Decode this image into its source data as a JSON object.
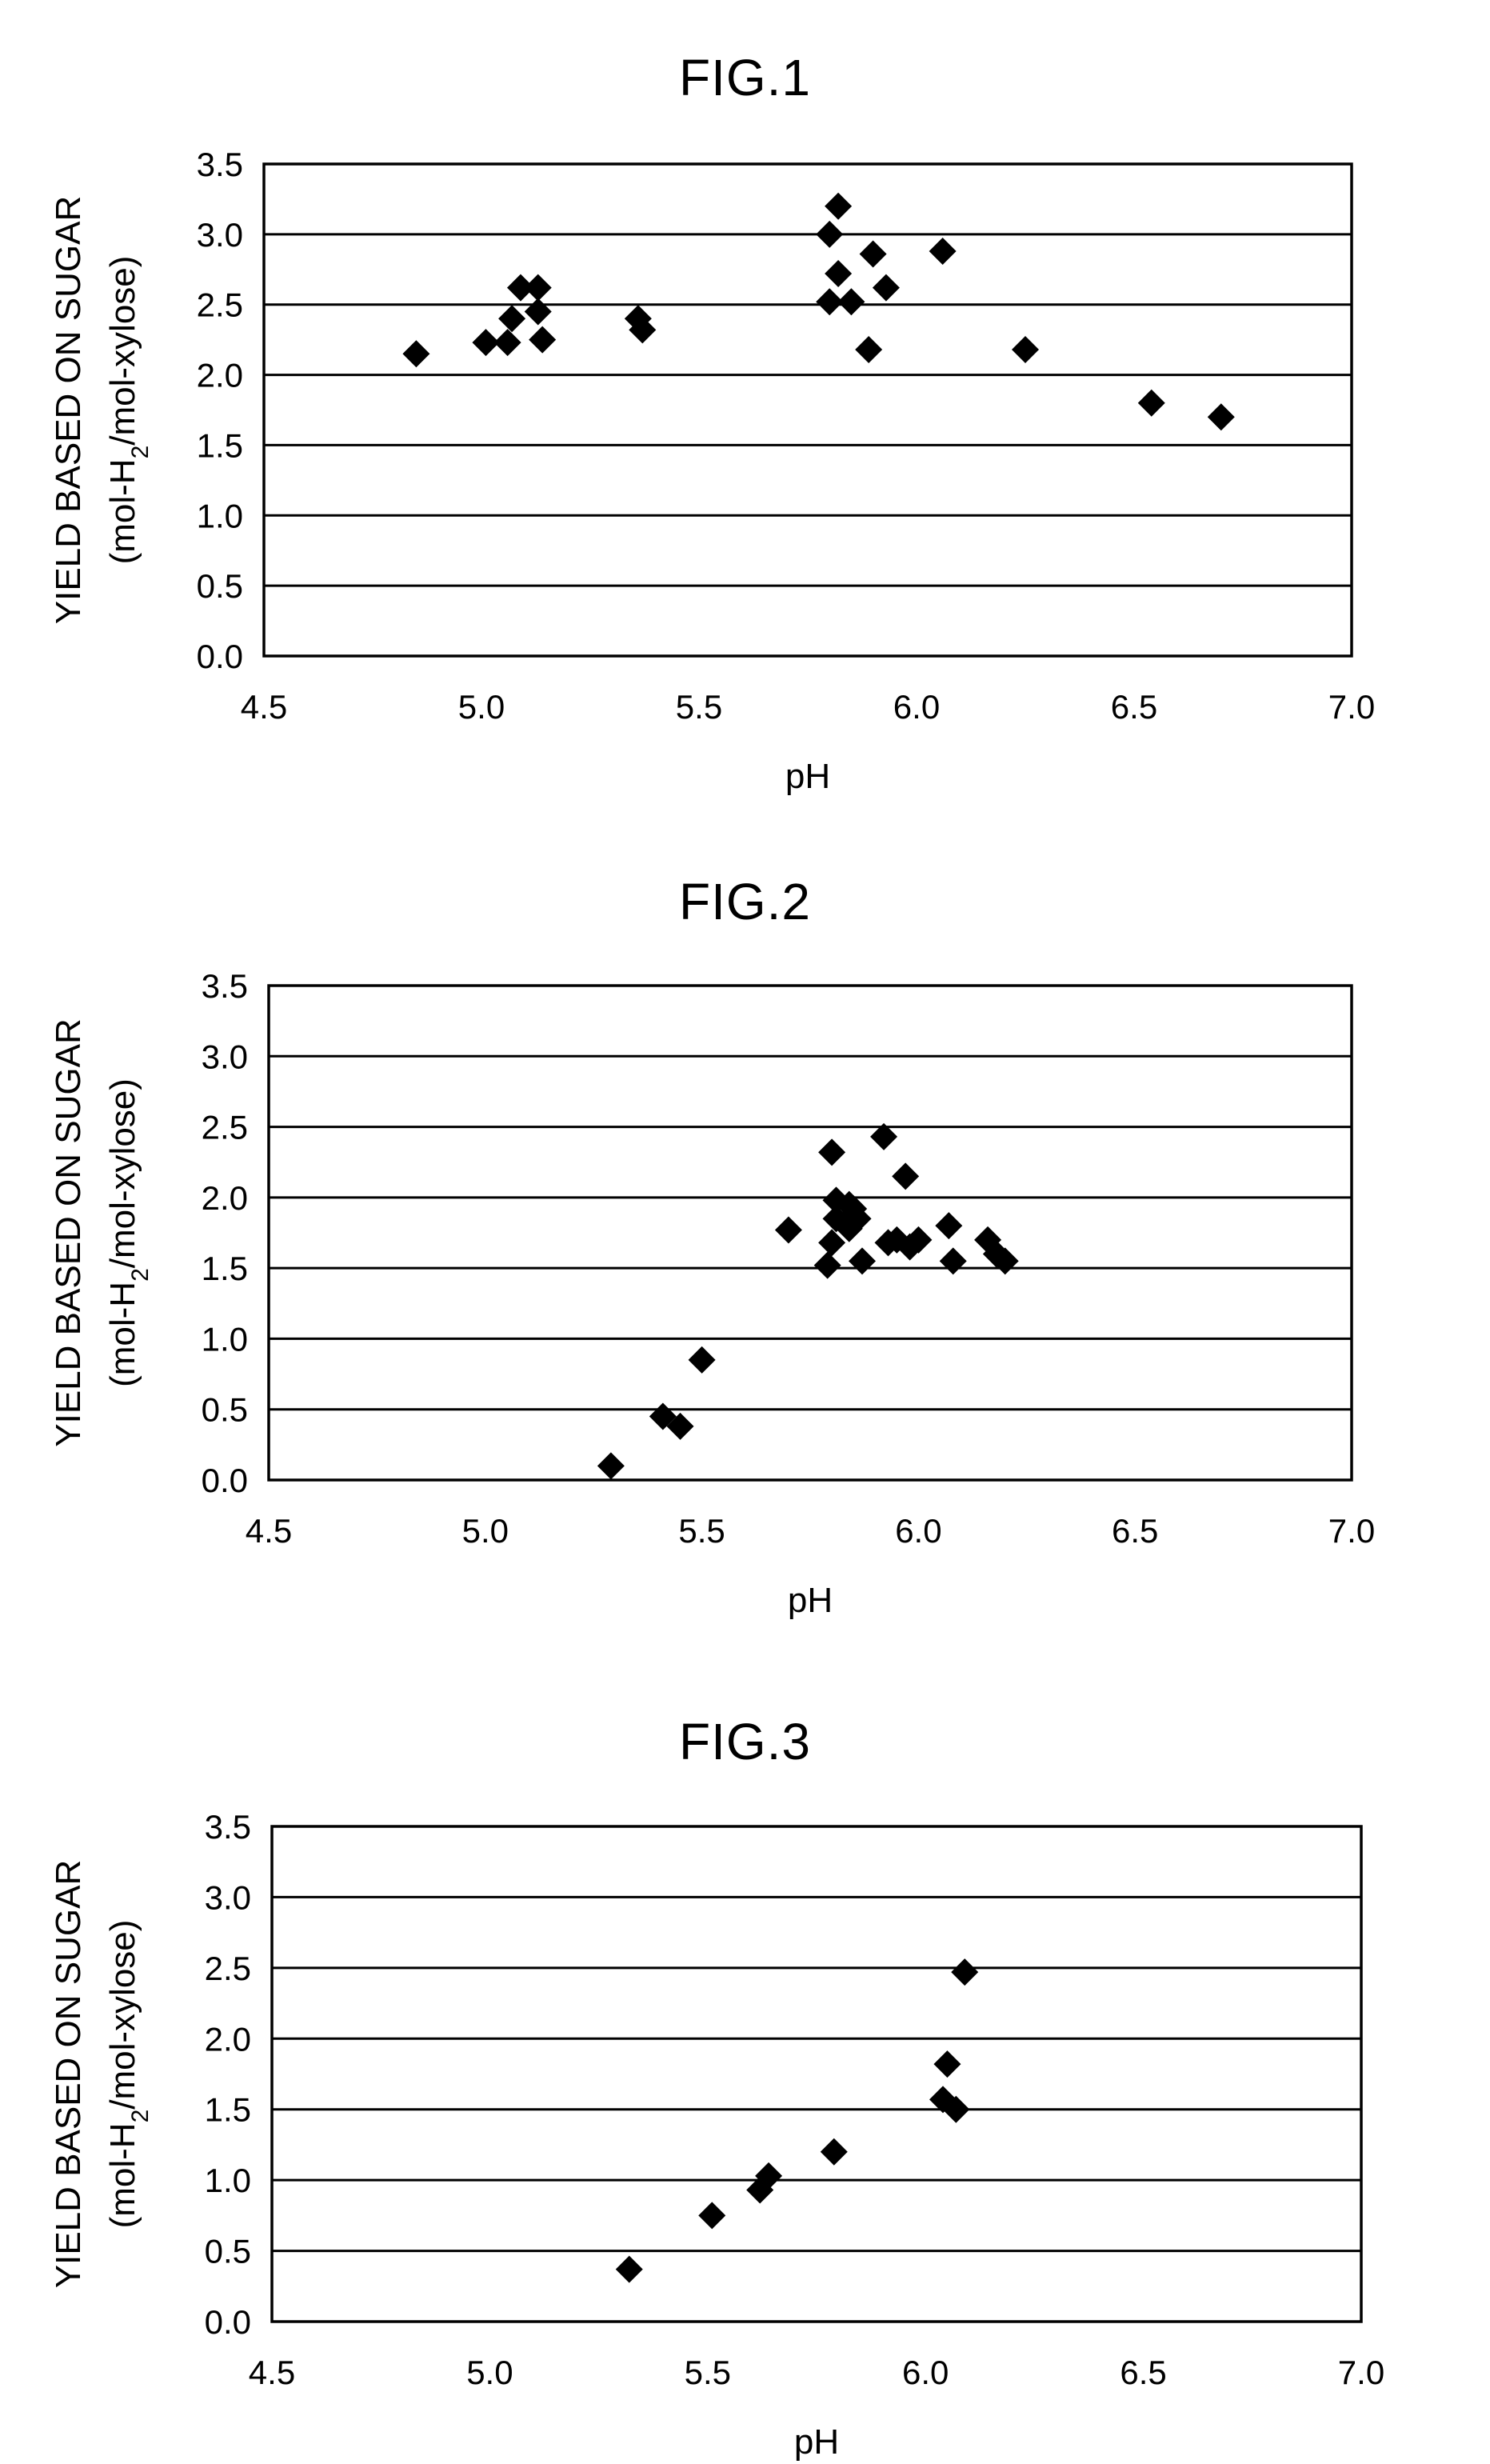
{
  "chart_data": [
    {
      "type": "scatter",
      "title": "FIG.1",
      "xlabel": "pH",
      "ylabel": "YIELD BASED ON SUGAR",
      "ylabel_sub": [
        "(mol-H",
        "2",
        "/mol-xylose)"
      ],
      "xlim": [
        4.5,
        7.0
      ],
      "ylim": [
        0.0,
        3.5
      ],
      "xticks": [
        "4.5",
        "5.0",
        "5.5",
        "6.0",
        "6.5",
        "7.0"
      ],
      "yticks": [
        "0.0",
        "0.5",
        "1.0",
        "1.5",
        "2.0",
        "2.5",
        "3.0",
        "3.5"
      ],
      "grid": "horizontal",
      "marker": "diamond",
      "series": [
        {
          "points": [
            [
              4.85,
              2.15
            ],
            [
              5.01,
              2.23
            ],
            [
              5.06,
              2.23
            ],
            [
              5.07,
              2.4
            ],
            [
              5.09,
              2.62
            ],
            [
              5.13,
              2.62
            ],
            [
              5.13,
              2.45
            ],
            [
              5.14,
              2.25
            ],
            [
              5.36,
              2.4
            ],
            [
              5.37,
              2.32
            ],
            [
              5.8,
              3.0
            ],
            [
              5.8,
              2.52
            ],
            [
              5.82,
              3.2
            ],
            [
              5.82,
              2.72
            ],
            [
              5.85,
              2.52
            ],
            [
              5.89,
              2.18
            ],
            [
              5.9,
              2.86
            ],
            [
              5.93,
              2.62
            ],
            [
              6.06,
              2.88
            ],
            [
              6.25,
              2.18
            ],
            [
              6.54,
              1.8
            ],
            [
              6.7,
              1.7
            ]
          ]
        }
      ]
    },
    {
      "type": "scatter",
      "title": "FIG.2",
      "xlabel": "pH",
      "ylabel": "YIELD BASED ON SUGAR",
      "ylabel_sub": [
        "(mol-H",
        "2",
        "/mol-xylose)"
      ],
      "xlim": [
        4.5,
        7.0
      ],
      "ylim": [
        0.0,
        3.5
      ],
      "xticks": [
        "4.5",
        "5.0",
        "5.5",
        "6.0",
        "6.5",
        "7.0"
      ],
      "yticks": [
        "0.0",
        "0.5",
        "1.0",
        "1.5",
        "2.0",
        "2.5",
        "3.0",
        "3.5"
      ],
      "grid": "horizontal",
      "marker": "diamond",
      "series": [
        {
          "points": [
            [
              5.29,
              0.1
            ],
            [
              5.41,
              0.45
            ],
            [
              5.45,
              0.38
            ],
            [
              5.5,
              0.85
            ],
            [
              5.7,
              1.77
            ],
            [
              5.79,
              1.52
            ],
            [
              5.8,
              1.68
            ],
            [
              5.8,
              2.32
            ],
            [
              5.81,
              1.98
            ],
            [
              5.81,
              1.85
            ],
            [
              5.83,
              1.82
            ],
            [
              5.84,
              1.95
            ],
            [
              5.84,
              1.78
            ],
            [
              5.85,
              1.92
            ],
            [
              5.86,
              1.85
            ],
            [
              5.87,
              1.55
            ],
            [
              5.92,
              2.43
            ],
            [
              5.93,
              1.68
            ],
            [
              5.95,
              1.7
            ],
            [
              5.97,
              2.15
            ],
            [
              5.98,
              1.65
            ],
            [
              6.0,
              1.7
            ],
            [
              6.07,
              1.8
            ],
            [
              6.08,
              1.55
            ],
            [
              6.16,
              1.7
            ],
            [
              6.18,
              1.6
            ],
            [
              6.2,
              1.55
            ]
          ]
        }
      ]
    },
    {
      "type": "scatter",
      "title": "FIG.3",
      "xlabel": "pH",
      "ylabel": "YIELD BASED ON SUGAR",
      "ylabel_sub": [
        "(mol-H",
        "2",
        "/mol-xylose)"
      ],
      "xlim": [
        4.5,
        7.0
      ],
      "ylim": [
        0.0,
        3.5
      ],
      "xticks": [
        "4.5",
        "5.0",
        "5.5",
        "6.0",
        "6.5",
        "7.0"
      ],
      "yticks": [
        "0.0",
        "0.5",
        "1.0",
        "1.5",
        "2.0",
        "2.5",
        "3.0",
        "3.5"
      ],
      "grid": "horizontal",
      "marker": "diamond",
      "series": [
        {
          "points": [
            [
              5.32,
              0.37
            ],
            [
              5.51,
              0.75
            ],
            [
              5.62,
              0.93
            ],
            [
              5.64,
              1.03
            ],
            [
              5.79,
              1.2
            ],
            [
              6.04,
              1.57
            ],
            [
              6.05,
              1.82
            ],
            [
              6.07,
              1.5
            ],
            [
              6.09,
              2.47
            ]
          ]
        }
      ]
    }
  ]
}
